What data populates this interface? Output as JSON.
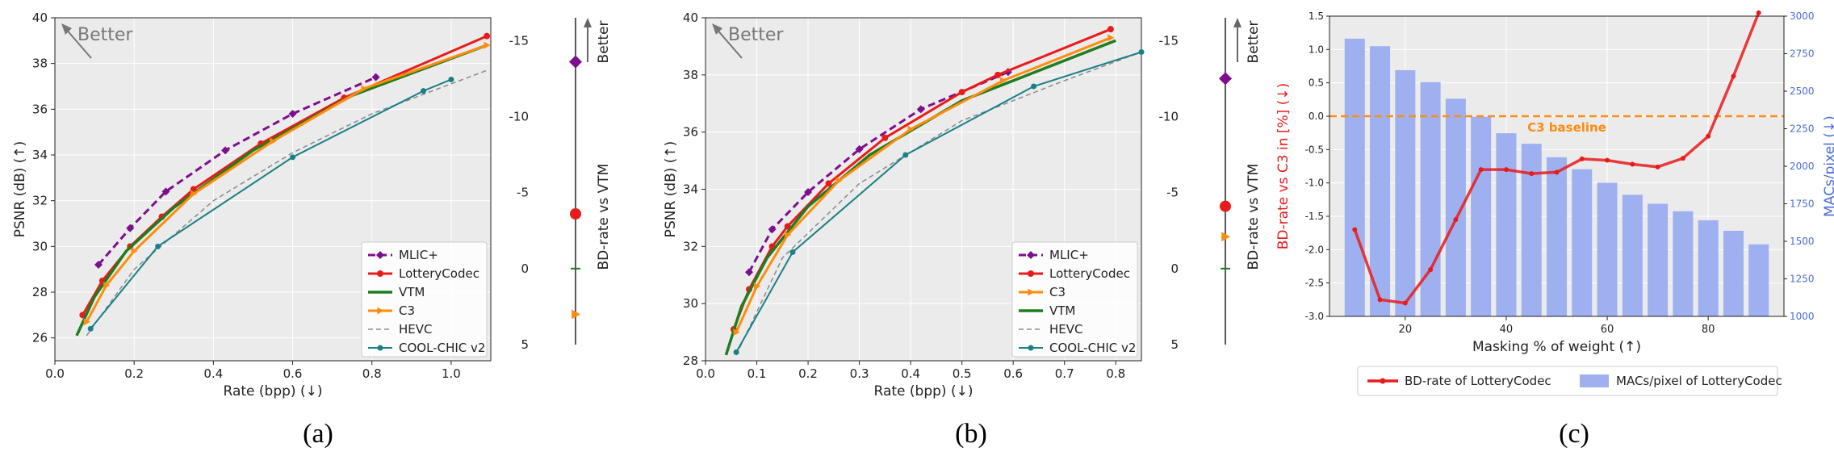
{
  "figure": {
    "captions": [
      "(a)",
      "(b)",
      "(c)"
    ],
    "colors": {
      "MLIC+": "#7b0f8c",
      "LotteryCodec": "#e81b1b",
      "VTM": "#1f7d1f",
      "C3": "#ff8c0f",
      "HEVC": "#8a8a8a",
      "COOL-CHIC v2": "#1a7f86",
      "bars": "#9fb0f0",
      "baseline": "#ff8c0f"
    }
  },
  "chart_data": [
    {
      "type": "line",
      "panel": "a",
      "xlabel": "Rate (bpp) (↓)",
      "ylabel": "PSNR (dB) (↑)",
      "xlim": [
        0.0,
        1.1
      ],
      "ylim": [
        25,
        40
      ],
      "xticks": [
        "0.0",
        "0.2",
        "0.4",
        "0.6",
        "0.8",
        "1.0"
      ],
      "yticks": [
        "26",
        "28",
        "30",
        "32",
        "34",
        "36",
        "38",
        "40"
      ],
      "annotation": "Better",
      "grid": true,
      "legend_position": "lower-right",
      "series": [
        {
          "name": "MLIC+",
          "style": "dashed-diamond",
          "points": [
            [
              0.11,
              29.2
            ],
            [
              0.19,
              30.8
            ],
            [
              0.28,
              32.4
            ],
            [
              0.43,
              34.2
            ],
            [
              0.6,
              35.8
            ],
            [
              0.81,
              37.4
            ]
          ]
        },
        {
          "name": "LotteryCodec",
          "style": "solid-dot",
          "points": [
            [
              0.07,
              27.0
            ],
            [
              0.12,
              28.5
            ],
            [
              0.19,
              30.0
            ],
            [
              0.27,
              31.3
            ],
            [
              0.35,
              32.5
            ],
            [
              0.52,
              34.5
            ],
            [
              0.73,
              36.5
            ],
            [
              1.09,
              39.2
            ]
          ]
        },
        {
          "name": "VTM",
          "style": "solid-thick",
          "points": [
            [
              0.055,
              26.1
            ],
            [
              0.1,
              27.8
            ],
            [
              0.18,
              29.8
            ],
            [
              0.3,
              31.7
            ],
            [
              0.5,
              34.2
            ],
            [
              0.75,
              36.6
            ],
            [
              1.09,
              38.8
            ]
          ]
        },
        {
          "name": "C3",
          "style": "solid-triangle",
          "points": [
            [
              0.08,
              26.7
            ],
            [
              0.13,
              28.3
            ],
            [
              0.2,
              29.8
            ],
            [
              0.35,
              32.3
            ],
            [
              0.55,
              34.6
            ],
            [
              0.78,
              36.9
            ],
            [
              1.09,
              38.8
            ]
          ]
        },
        {
          "name": "HEVC",
          "style": "dashed",
          "points": [
            [
              0.08,
              26.1
            ],
            [
              0.2,
              29.0
            ],
            [
              0.4,
              32.0
            ],
            [
              0.6,
              34.1
            ],
            [
              0.8,
              35.8
            ],
            [
              1.09,
              37.7
            ]
          ]
        },
        {
          "name": "COOL-CHIC v2",
          "style": "solid-dot-small",
          "points": [
            [
              0.09,
              26.4
            ],
            [
              0.26,
              30.0
            ],
            [
              0.6,
              33.9
            ],
            [
              0.93,
              36.8
            ],
            [
              1.0,
              37.3
            ]
          ]
        }
      ]
    },
    {
      "type": "scatter",
      "panel": "a-side",
      "ylabel": "BD-rate vs VTM",
      "yticks": [
        "-15",
        "-10",
        "-5",
        "0",
        "5"
      ],
      "ylim": [
        -16.5,
        5
      ],
      "annotation": "Better",
      "points": [
        {
          "name": "MLIC+",
          "value": -13.6,
          "marker": "diamond"
        },
        {
          "name": "LotteryCodec",
          "value": -3.6,
          "marker": "circle"
        },
        {
          "name": "VTM",
          "value": 0,
          "marker": "tick"
        },
        {
          "name": "C3",
          "value": 3.0,
          "marker": "triangle"
        }
      ]
    },
    {
      "type": "line",
      "panel": "b",
      "xlabel": "Rate (bpp) (↓)",
      "ylabel": "PSNR (dB) (↑)",
      "xlim": [
        0.0,
        0.85
      ],
      "ylim": [
        28,
        40
      ],
      "xticks": [
        "0.0",
        "0.1",
        "0.2",
        "0.3",
        "0.4",
        "0.5",
        "0.6",
        "0.7",
        "0.8"
      ],
      "yticks": [
        "28",
        "30",
        "32",
        "34",
        "36",
        "38",
        "40"
      ],
      "annotation": "Better",
      "grid": true,
      "legend_position": "lower-right",
      "series": [
        {
          "name": "MLIC+",
          "style": "dashed-diamond",
          "points": [
            [
              0.085,
              31.1
            ],
            [
              0.13,
              32.6
            ],
            [
              0.2,
              33.9
            ],
            [
              0.3,
              35.4
            ],
            [
              0.42,
              36.8
            ],
            [
              0.59,
              38.1
            ]
          ]
        },
        {
          "name": "LotteryCodec",
          "style": "solid-dot",
          "points": [
            [
              0.055,
              29.1
            ],
            [
              0.085,
              30.5
            ],
            [
              0.13,
              32.0
            ],
            [
              0.16,
              32.7
            ],
            [
              0.24,
              34.2
            ],
            [
              0.35,
              35.8
            ],
            [
              0.5,
              37.4
            ],
            [
              0.57,
              38.0
            ],
            [
              0.79,
              39.6
            ]
          ]
        },
        {
          "name": "VTM",
          "style": "solid-thick",
          "points": [
            [
              0.04,
              28.2
            ],
            [
              0.07,
              29.9
            ],
            [
              0.12,
              31.6
            ],
            [
              0.2,
              33.4
            ],
            [
              0.32,
              35.2
            ],
            [
              0.5,
              37.1
            ],
            [
              0.8,
              39.2
            ]
          ]
        },
        {
          "name": "C3",
          "style": "solid-triangle",
          "points": [
            [
              0.06,
              29.0
            ],
            [
              0.1,
              30.6
            ],
            [
              0.16,
              32.4
            ],
            [
              0.26,
              34.3
            ],
            [
              0.4,
              36.1
            ],
            [
              0.58,
              37.8
            ],
            [
              0.79,
              39.3
            ]
          ]
        },
        {
          "name": "HEVC",
          "style": "dashed",
          "points": [
            [
              0.06,
              28.2
            ],
            [
              0.15,
              31.6
            ],
            [
              0.3,
              34.2
            ],
            [
              0.5,
              36.4
            ],
            [
              0.7,
              37.8
            ],
            [
              0.85,
              38.8
            ]
          ]
        },
        {
          "name": "COOL-CHIC v2",
          "style": "solid-dot-small",
          "points": [
            [
              0.06,
              28.3
            ],
            [
              0.17,
              31.8
            ],
            [
              0.39,
              35.2
            ],
            [
              0.64,
              37.6
            ],
            [
              0.85,
              38.8
            ]
          ]
        }
      ]
    },
    {
      "type": "scatter",
      "panel": "b-side",
      "ylabel": "BD-rate vs VTM",
      "yticks": [
        "-15",
        "-10",
        "-5",
        "0",
        "5"
      ],
      "ylim": [
        -16.5,
        5
      ],
      "annotation": "Better",
      "points": [
        {
          "name": "MLIC+",
          "value": -12.5,
          "marker": "diamond"
        },
        {
          "name": "LotteryCodec",
          "value": -4.1,
          "marker": "circle"
        },
        {
          "name": "VTM",
          "value": 0,
          "marker": "tick"
        },
        {
          "name": "C3",
          "value": -2.1,
          "marker": "triangle"
        }
      ]
    },
    {
      "type": "bar",
      "panel": "c",
      "xlabel": "Masking % of weight (↑)",
      "ylabel_left": "BD-rate vs C3 in [%] (↓)",
      "ylabel_right": "MACs/pixel (↓)",
      "xlim": [
        5,
        95
      ],
      "ylim_left": [
        -3.0,
        1.5
      ],
      "ylim_right": [
        1000,
        3000
      ],
      "xticks": [
        "20",
        "40",
        "60",
        "80"
      ],
      "yticks_left": [
        "-3.0",
        "-2.5",
        "-2.0",
        "-1.5",
        "-1.0",
        "-0.5",
        "0.0",
        "0.5",
        "1.0",
        "1.5"
      ],
      "yticks_right": [
        "1000",
        "1250",
        "1500",
        "1750",
        "2000",
        "2250",
        "2500",
        "2750",
        "3000"
      ],
      "baseline_label": "C3 baseline",
      "legend_position": "below",
      "categories": [
        10,
        15,
        20,
        25,
        30,
        35,
        40,
        45,
        50,
        55,
        60,
        65,
        70,
        75,
        80,
        85,
        90
      ],
      "series": [
        {
          "name": "MACs/pixel of LotteryCodec",
          "axis": "right",
          "values": [
            2850,
            2800,
            2640,
            2560,
            2450,
            2330,
            2220,
            2150,
            2060,
            1980,
            1890,
            1810,
            1750,
            1700,
            1640,
            1570,
            1480
          ]
        },
        {
          "name": "BD-rate of LotteryCodec",
          "axis": "left",
          "values": [
            -1.7,
            -2.75,
            -2.8,
            -2.3,
            -1.55,
            -0.8,
            -0.8,
            -0.86,
            -0.84,
            -0.64,
            -0.66,
            -0.72,
            -0.76,
            -0.63,
            -0.3,
            0.6,
            1.55
          ]
        }
      ],
      "baseline_value": 0.0
    }
  ]
}
